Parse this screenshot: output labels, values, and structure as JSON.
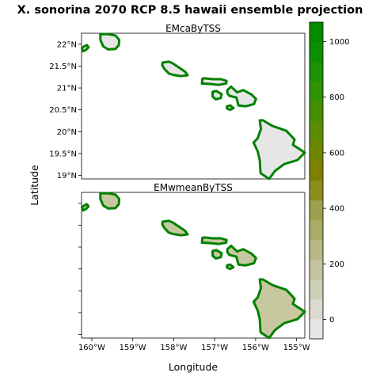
{
  "title": "X. sonorina 2070 RCP 8.5 hawaii ensemble projection",
  "axes": {
    "x_label": "Longitude",
    "y_label": "Latitude",
    "x_ticks": [
      {
        "value": -160,
        "label": "160°W"
      },
      {
        "value": -159,
        "label": "159°W"
      },
      {
        "value": -158,
        "label": "158°W"
      },
      {
        "value": -157,
        "label": "157°W"
      },
      {
        "value": -156,
        "label": "156°W"
      },
      {
        "value": -155,
        "label": "155°W"
      }
    ],
    "y_ticks": [
      {
        "value": 22,
        "label": "22°N"
      },
      {
        "value": 21.5,
        "label": "21.5°N"
      },
      {
        "value": 21,
        "label": "21°N"
      },
      {
        "value": 20.5,
        "label": "20.5°N"
      },
      {
        "value": 20,
        "label": "20°N"
      },
      {
        "value": 19.5,
        "label": "19.5°N"
      },
      {
        "value": 19,
        "label": "19°N"
      }
    ],
    "lon_range": [
      -160.25,
      -154.8
    ],
    "lat_range": [
      18.92,
      22.25
    ]
  },
  "panels": [
    {
      "title": "EMcaByTSS",
      "show_y_tick_labels": true,
      "fill_color": "#e6e6e6"
    },
    {
      "title": "EMwmeanByTSS",
      "show_y_tick_labels": false,
      "fill_color": "#c8c8a0"
    }
  ],
  "colorbar": {
    "range": [
      -70,
      1070
    ],
    "ticks": [
      {
        "value": 0,
        "label": "0"
      },
      {
        "value": 200,
        "label": "200"
      },
      {
        "value": 400,
        "label": "400"
      },
      {
        "value": 600,
        "label": "600"
      },
      {
        "value": 800,
        "label": "800"
      },
      {
        "value": 1000,
        "label": "1000"
      }
    ],
    "colors": [
      "#e6e6e6",
      "#dadad0",
      "#cfcfb7",
      "#c4c49f",
      "#b8b884",
      "#abab6b",
      "#9f9f50",
      "#8e8e1e",
      "#808000",
      "#6d8700",
      "#5a8e00",
      "#469000",
      "#319200",
      "#1d9100",
      "#0b8f00",
      "#008b00"
    ],
    "edge_color": "#008000"
  },
  "islands": [
    {
      "name": "Niihau",
      "coords": [
        [
          -160.24,
          21.91
        ],
        [
          -160.2,
          21.94
        ],
        [
          -160.12,
          21.98
        ],
        [
          -160.08,
          21.93
        ],
        [
          -160.14,
          21.87
        ],
        [
          -160.22,
          21.84
        ]
      ]
    },
    {
      "name": "Kauai",
      "coords": [
        [
          -159.79,
          22.23
        ],
        [
          -159.6,
          22.23
        ],
        [
          -159.42,
          22.2
        ],
        [
          -159.33,
          22.1
        ],
        [
          -159.34,
          21.98
        ],
        [
          -159.42,
          21.89
        ],
        [
          -159.6,
          21.88
        ],
        [
          -159.72,
          21.95
        ],
        [
          -159.79,
          22.1
        ]
      ]
    },
    {
      "name": "Oahu",
      "coords": [
        [
          -158.27,
          21.58
        ],
        [
          -158.12,
          21.6
        ],
        [
          -158.02,
          21.56
        ],
        [
          -157.86,
          21.46
        ],
        [
          -157.72,
          21.37
        ],
        [
          -157.66,
          21.29
        ],
        [
          -157.82,
          21.27
        ],
        [
          -158.02,
          21.3
        ],
        [
          -158.12,
          21.33
        ],
        [
          -158.23,
          21.44
        ],
        [
          -158.28,
          21.52
        ]
      ]
    },
    {
      "name": "Molokai",
      "coords": [
        [
          -157.3,
          21.21
        ],
        [
          -157.26,
          21.22
        ],
        [
          -157.05,
          21.2
        ],
        [
          -156.85,
          21.2
        ],
        [
          -156.71,
          21.16
        ],
        [
          -156.72,
          21.1
        ],
        [
          -156.9,
          21.07
        ],
        [
          -157.1,
          21.09
        ],
        [
          -157.31,
          21.1
        ]
      ]
    },
    {
      "name": "Lanai",
      "coords": [
        [
          -157.05,
          20.91
        ],
        [
          -156.96,
          20.93
        ],
        [
          -156.83,
          20.86
        ],
        [
          -156.85,
          20.77
        ],
        [
          -156.97,
          20.74
        ],
        [
          -157.05,
          20.8
        ]
      ]
    },
    {
      "name": "Maui",
      "coords": [
        [
          -156.69,
          20.95
        ],
        [
          -156.6,
          21.03
        ],
        [
          -156.52,
          20.96
        ],
        [
          -156.45,
          20.9
        ],
        [
          -156.3,
          20.95
        ],
        [
          -156.1,
          20.85
        ],
        [
          -155.99,
          20.75
        ],
        [
          -156.04,
          20.63
        ],
        [
          -156.25,
          20.58
        ],
        [
          -156.42,
          20.6
        ],
        [
          -156.47,
          20.78
        ],
        [
          -156.64,
          20.82
        ],
        [
          -156.69,
          20.88
        ]
      ]
    },
    {
      "name": "Kahoolawe",
      "coords": [
        [
          -156.7,
          20.58
        ],
        [
          -156.62,
          20.6
        ],
        [
          -156.54,
          20.54
        ],
        [
          -156.62,
          20.5
        ],
        [
          -156.7,
          20.53
        ]
      ]
    },
    {
      "name": "Hawaii",
      "coords": [
        [
          -155.9,
          20.26
        ],
        [
          -155.82,
          20.26
        ],
        [
          -155.59,
          20.13
        ],
        [
          -155.25,
          20.02
        ],
        [
          -155.05,
          19.82
        ],
        [
          -155.09,
          19.7
        ],
        [
          -154.8,
          19.52
        ],
        [
          -154.98,
          19.35
        ],
        [
          -155.3,
          19.26
        ],
        [
          -155.53,
          19.1
        ],
        [
          -155.67,
          18.92
        ],
        [
          -155.88,
          19.05
        ],
        [
          -155.9,
          19.35
        ],
        [
          -155.95,
          19.55
        ],
        [
          -156.05,
          19.75
        ],
        [
          -155.95,
          19.85
        ],
        [
          -155.87,
          20.06
        ]
      ]
    }
  ]
}
